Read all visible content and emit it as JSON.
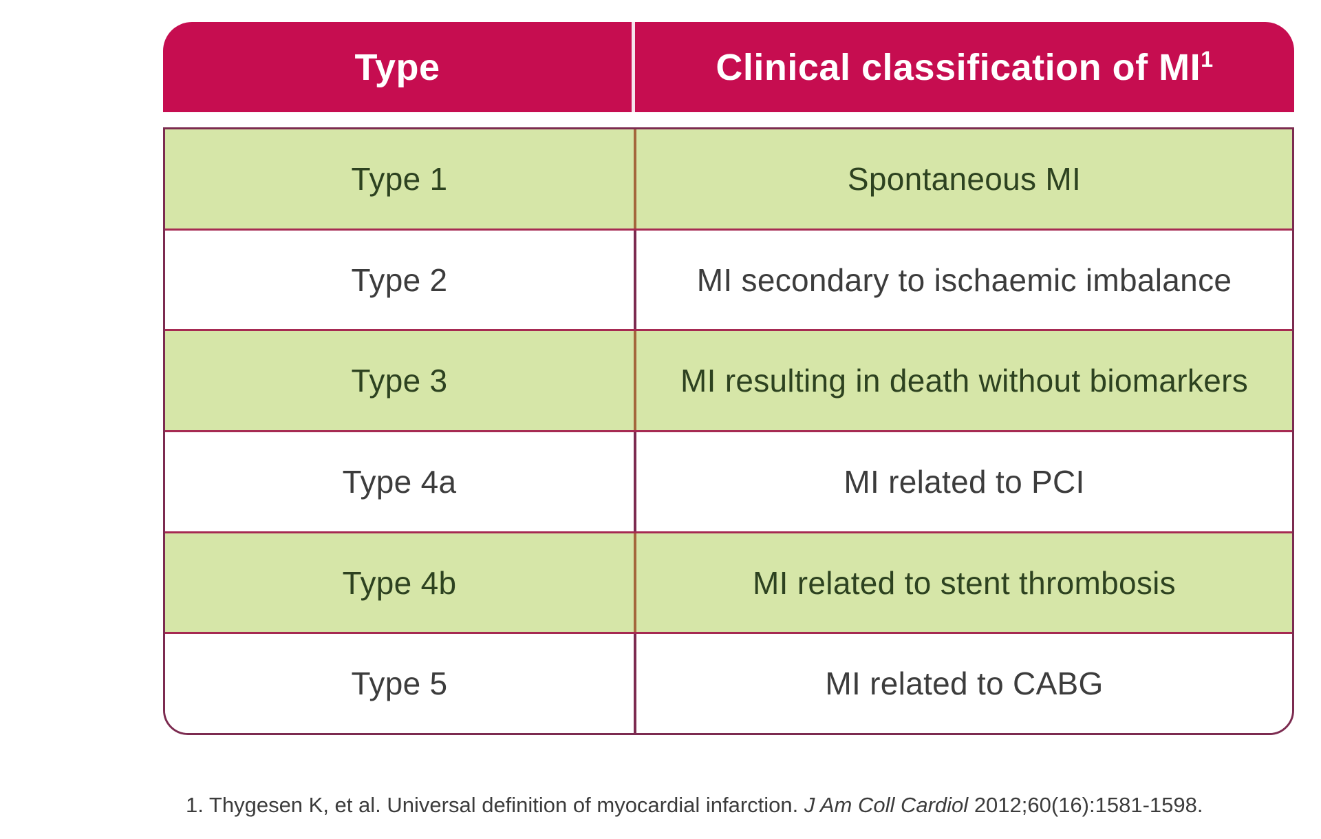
{
  "colors": {
    "page_bg": "#ffffff",
    "header_bg": "#C60D50",
    "header_text": "#ffffff",
    "header_divider": "#f6e3ec",
    "row_green": "#D6E6A8",
    "outer_border": "#7C2B50",
    "inner_border": "#A62A52",
    "divider_on_green": "#A4673C",
    "divider_on_white": "#7C2B50",
    "text_green_row": "#2D4220",
    "text_dark": "#3C3C3C"
  },
  "table": {
    "header": {
      "col1": "Type",
      "col2": "Clinical classification of MI",
      "col2_superscript": "1"
    },
    "rows": [
      {
        "type": "Type 1",
        "classification": "Spontaneous MI"
      },
      {
        "type": "Type 2",
        "classification": "MI secondary to ischaemic imbalance"
      },
      {
        "type": "Type 3",
        "classification": "MI resulting in death without biomarkers"
      },
      {
        "type": "Type 4a",
        "classification": "MI related to PCI"
      },
      {
        "type": "Type 4b",
        "classification": "MI related to stent thrombosis"
      },
      {
        "type": "Type 5",
        "classification": "MI related to CABG"
      }
    ]
  },
  "footnote": {
    "prefix": "1. Thygesen K, et al. Universal definition of myocardial infarction. ",
    "journal": "J Am Coll Cardiol",
    "suffix": " 2012;60(16):1581-1598."
  }
}
